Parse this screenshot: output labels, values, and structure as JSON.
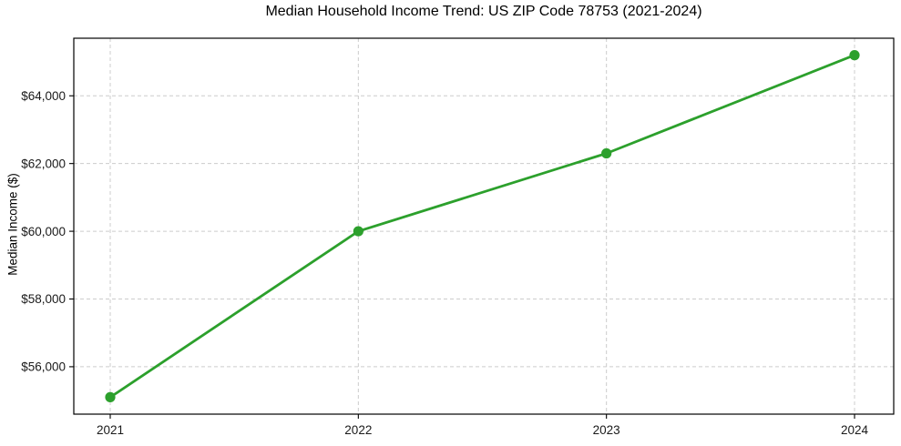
{
  "chart_data": {
    "type": "line",
    "title": "Median Household Income Trend: US ZIP Code 78753 (2021-2024)",
    "xlabel": "",
    "ylabel": "Median Income ($)",
    "categories": [
      "2021",
      "2022",
      "2023",
      "2024"
    ],
    "values": [
      55100,
      60000,
      62300,
      65200
    ],
    "value_format": "$#,###",
    "yticks": {
      "values": [
        56000,
        58000,
        60000,
        62000,
        64000
      ],
      "labels": [
        "$56,000",
        "$58,000",
        "$60,000",
        "$62,000",
        "$64,000"
      ]
    },
    "ylim": [
      54600,
      65700
    ],
    "grid": {
      "visible": true,
      "style": "dashed",
      "axes": "both"
    },
    "legend": {
      "visible": false
    },
    "style": {
      "line_color": "#2ca02c",
      "marker": "circle",
      "marker_color": "#2ca02c",
      "grid_color": "#cccccc",
      "frame_color": "#000000",
      "tick_color": "#000000",
      "text_color": "#1a1a1a",
      "background": "#ffffff"
    }
  }
}
